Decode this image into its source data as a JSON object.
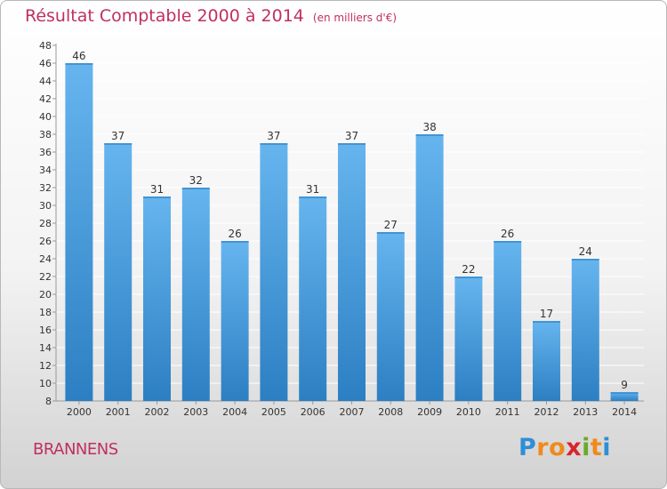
{
  "header": {
    "title": "Résultat Comptable 2000 à 2014",
    "subtitle": "(en milliers d'€)"
  },
  "footer": {
    "place": "BRANNENS",
    "logo": {
      "text": "Proxiti",
      "letters": [
        "P",
        "r",
        "o",
        "x",
        "i",
        "t",
        "i"
      ],
      "colors": [
        "#2e8fd6",
        "#f08a1c",
        "#f08a1c",
        "#d9262b",
        "#6aaa2a",
        "#f08a1c",
        "#2e8fd6"
      ]
    }
  },
  "colors": {
    "bar_light": "#66b5ef",
    "bar_dark": "#2c7fc2",
    "grid": "#ffffff",
    "axis": "#999999",
    "text": "#333333"
  },
  "chart_data": {
    "type": "bar",
    "title": "Résultat Comptable 2000 à 2014",
    "subtitle": "(en milliers d'€)",
    "categories": [
      "2000",
      "2001",
      "2002",
      "2003",
      "2004",
      "2005",
      "2006",
      "2007",
      "2008",
      "2009",
      "2010",
      "2011",
      "2012",
      "2013",
      "2014"
    ],
    "values": [
      46,
      37,
      31,
      32,
      26,
      37,
      31,
      37,
      27,
      38,
      22,
      26,
      17,
      24,
      9
    ],
    "ylim": [
      8,
      48
    ],
    "ytick_step": 2,
    "yticks": [
      "8",
      "10",
      "12",
      "14",
      "16",
      "18",
      "20",
      "22",
      "24",
      "26",
      "28",
      "30",
      "32",
      "34",
      "36",
      "38",
      "40",
      "42",
      "44",
      "46",
      "48"
    ],
    "grid": true,
    "xlabel": "",
    "ylabel": ""
  }
}
